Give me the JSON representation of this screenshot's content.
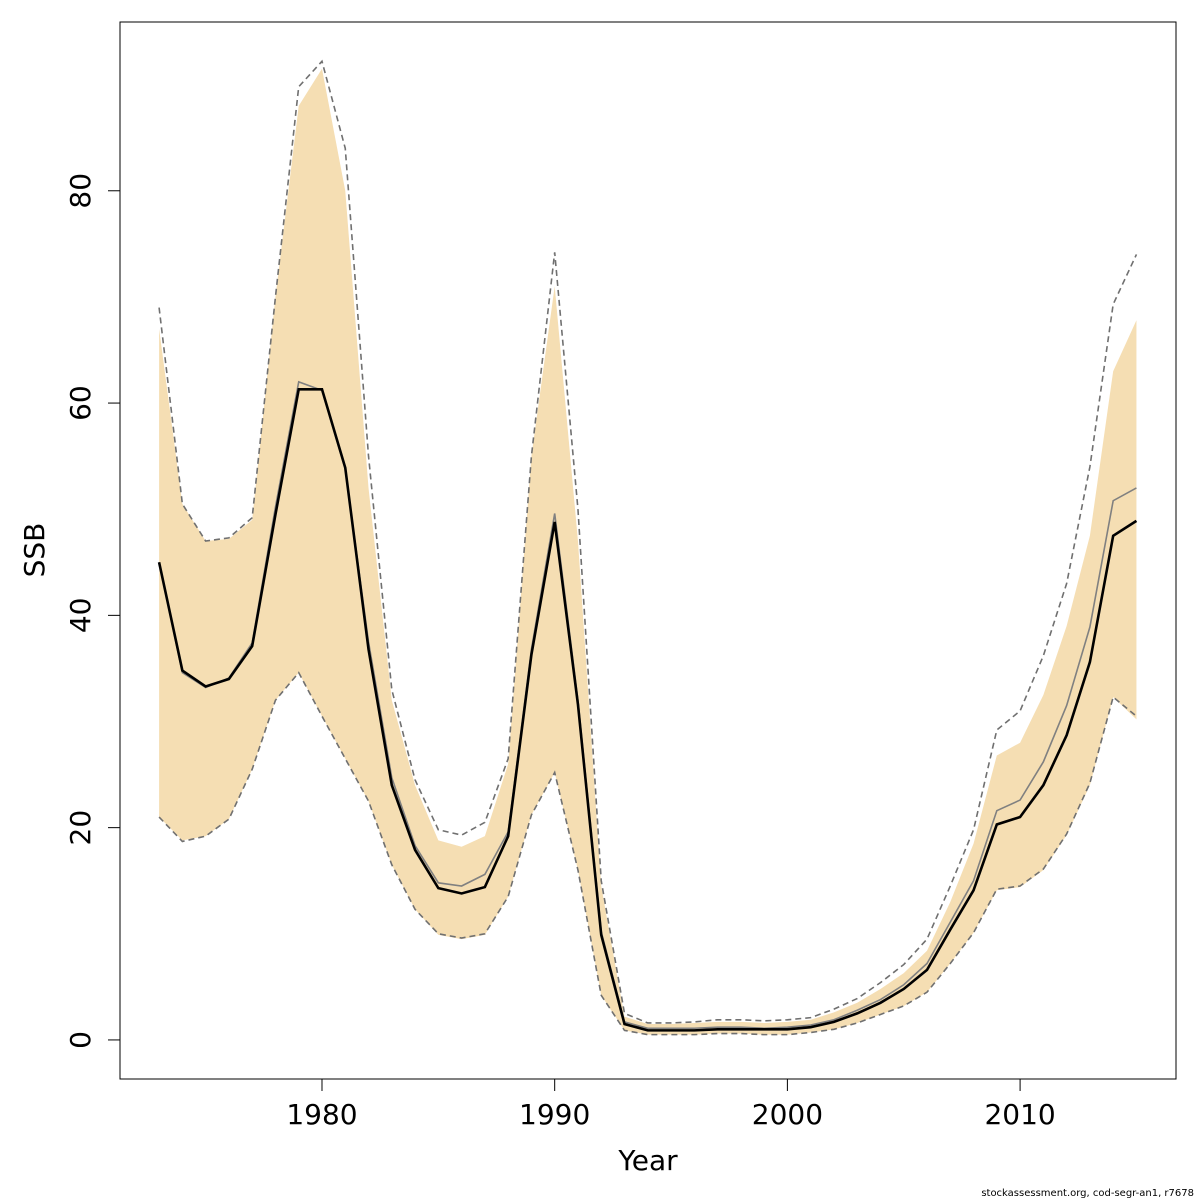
{
  "chart_data": {
    "type": "line",
    "xlabel": "Year",
    "ylabel": "SSB",
    "footer": "stockassessment.org, cod-segr-an1, r7678",
    "x": [
      1973,
      1974,
      1975,
      1976,
      1977,
      1978,
      1979,
      1980,
      1981,
      1982,
      1983,
      1984,
      1985,
      1986,
      1987,
      1988,
      1989,
      1990,
      1991,
      1992,
      1993,
      1994,
      1995,
      1996,
      1997,
      1998,
      1999,
      2000,
      2001,
      2002,
      2003,
      2004,
      2005,
      2006,
      2007,
      2008,
      2009,
      2010,
      2011,
      2012,
      2013,
      2014,
      2015
    ],
    "xlim": [
      1971.32,
      2016.7
    ],
    "ylim": [
      -3.68,
      95.9
    ],
    "xticks": [
      1980,
      1990,
      2000,
      2010
    ],
    "yticks": [
      0,
      20,
      40,
      60,
      80
    ],
    "band": {
      "color": "#f5deb3",
      "upper": [
        67,
        50.5,
        47,
        47.2,
        49,
        70,
        88,
        91.5,
        80,
        52,
        32,
        24,
        18.8,
        18.2,
        19.2,
        26,
        55,
        71,
        47,
        14.5,
        2.2,
        1.5,
        1.5,
        1.6,
        1.7,
        1.7,
        1.6,
        1.7,
        1.9,
        2.6,
        3.5,
        4.8,
        6.3,
        8.4,
        13,
        18.5,
        26.8,
        28,
        32.5,
        39,
        47.5,
        63,
        67.8
      ],
      "lower": [
        21,
        18.8,
        19.2,
        20.8,
        25.5,
        32,
        34.6,
        30.5,
        26.5,
        22.5,
        16.5,
        12.3,
        9.9,
        9.5,
        9.9,
        13.5,
        21.2,
        25.2,
        16,
        4.2,
        0.9,
        0.5,
        0.5,
        0.5,
        0.6,
        0.6,
        0.5,
        0.5,
        0.7,
        1.0,
        1.6,
        2.4,
        3.2,
        4.5,
        7.2,
        10.1,
        14.1,
        14.4,
        16,
        19.3,
        24,
        32.3,
        30.2
      ]
    },
    "series": [
      {
        "color": "#707070",
        "dashed": true,
        "values": [
          69,
          50.5,
          47,
          47.3,
          49.2,
          70,
          89.8,
          92.2,
          84,
          55,
          33,
          24.5,
          19.8,
          19.3,
          20.5,
          26.5,
          55,
          74.2,
          50,
          15,
          2.5,
          1.6,
          1.6,
          1.7,
          1.9,
          1.9,
          1.8,
          1.9,
          2.1,
          2.9,
          3.9,
          5.4,
          7.1,
          9.5,
          14.5,
          19.8,
          29.2,
          31,
          36.2,
          43,
          54,
          69.3,
          74
        ]
      },
      {
        "color": "#707070",
        "dashed": true,
        "values": [
          21,
          18.7,
          19.2,
          20.8,
          25.5,
          32,
          34.6,
          30.5,
          26.5,
          22.5,
          16.5,
          12.3,
          10,
          9.6,
          10,
          13.5,
          21.2,
          25.2,
          16,
          4.2,
          0.9,
          0.5,
          0.5,
          0.5,
          0.6,
          0.6,
          0.5,
          0.5,
          0.7,
          1.0,
          1.6,
          2.4,
          3.2,
          4.5,
          7.2,
          10.1,
          14.2,
          14.5,
          16.1,
          19.4,
          24.2,
          32.3,
          30.5
        ]
      },
      {
        "color": "#808080",
        "dashed": false,
        "values": [
          45.0,
          34.6,
          33.2,
          34.1,
          37.4,
          50.2,
          62.0,
          61.2,
          53.8,
          37.5,
          24.7,
          18.3,
          14.8,
          14.5,
          15.6,
          19.6,
          36.8,
          49.6,
          32.0,
          10.2,
          1.7,
          1.1,
          1.1,
          1.1,
          1.2,
          1.2,
          1.1,
          1.2,
          1.4,
          1.9,
          2.8,
          3.8,
          5.2,
          7.2,
          11.1,
          15.0,
          21.6,
          22.6,
          26.2,
          31.5,
          38.9,
          50.8,
          52.0
        ]
      },
      {
        "color": "#000000",
        "dashed": false,
        "values": [
          45.0,
          34.8,
          33.3,
          34.0,
          37.1,
          49.5,
          61.3,
          61.3,
          53.9,
          36.8,
          24.0,
          17.9,
          14.3,
          13.8,
          14.4,
          19.2,
          36.3,
          48.8,
          31.6,
          9.9,
          1.5,
          0.9,
          0.9,
          0.9,
          1.0,
          1.0,
          1.0,
          1.0,
          1.2,
          1.7,
          2.5,
          3.5,
          4.8,
          6.6,
          10.4,
          14.1,
          20.3,
          21.0,
          24.0,
          28.7,
          35.6,
          47.5,
          48.9
        ]
      }
    ]
  }
}
